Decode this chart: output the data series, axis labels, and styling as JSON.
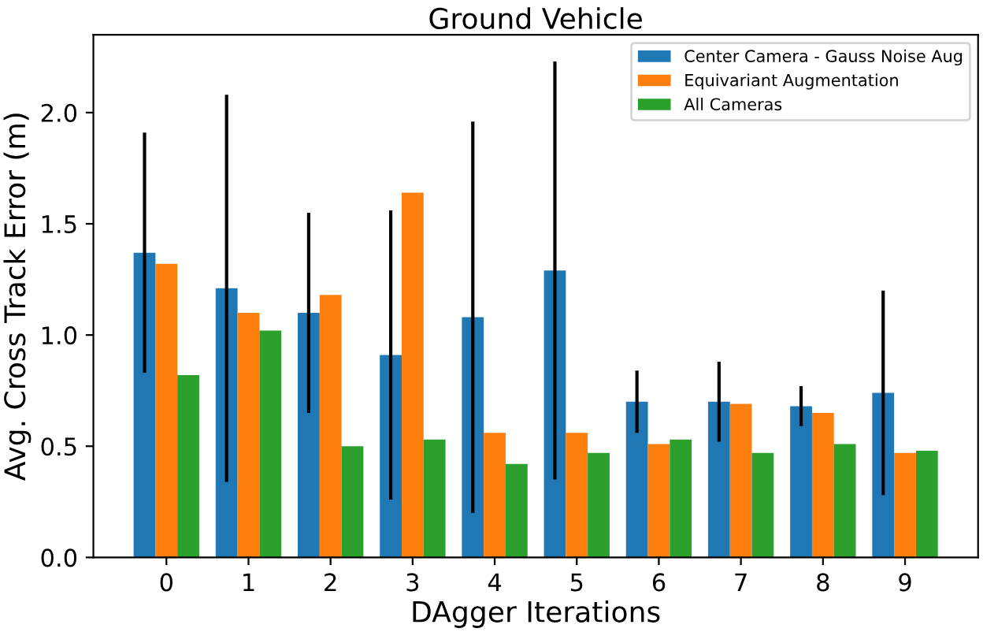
{
  "chart_data": {
    "type": "bar",
    "title": "Ground Vehicle",
    "xlabel": "DAgger Iterations",
    "ylabel": "Avg. Cross Track Error (m)",
    "categories": [
      "0",
      "1",
      "2",
      "3",
      "4",
      "5",
      "6",
      "7",
      "8",
      "9"
    ],
    "series": [
      {
        "name": "Center Camera - Gauss Noise Aug",
        "color": "#1f77b4",
        "values": [
          1.37,
          1.21,
          1.1,
          0.91,
          1.08,
          1.29,
          0.7,
          0.7,
          0.68,
          0.74
        ],
        "errors": [
          0.54,
          0.87,
          0.45,
          0.65,
          0.88,
          0.94,
          0.14,
          0.18,
          0.09,
          0.46
        ]
      },
      {
        "name": "Equivariant Augmentation",
        "color": "#ff7f0e",
        "values": [
          1.32,
          1.1,
          1.18,
          1.64,
          0.56,
          0.56,
          0.51,
          0.69,
          0.65,
          0.47
        ]
      },
      {
        "name": "All Cameras",
        "color": "#2ca02c",
        "values": [
          0.82,
          1.02,
          0.5,
          0.53,
          0.42,
          0.47,
          0.53,
          0.47,
          0.51,
          0.48
        ]
      }
    ],
    "ylim": [
      0,
      2.35
    ],
    "yticks": [
      {
        "value": 0,
        "label": "0.0"
      },
      {
        "value": 0.5,
        "label": "0.5"
      },
      {
        "value": 1,
        "label": "1.0"
      },
      {
        "value": 1.5,
        "label": "1.5"
      },
      {
        "value": 2,
        "label": "2.0"
      }
    ],
    "legend": "top right",
    "grid": false
  }
}
